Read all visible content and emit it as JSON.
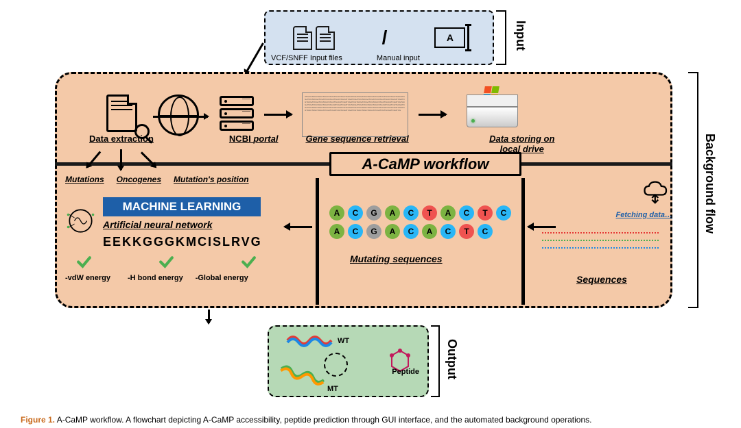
{
  "input": {
    "vcf_label": "VCF/SNFF Input files",
    "manual_label": "Manual input",
    "manual_char": "A",
    "section": "Input"
  },
  "bgflow": {
    "section": "Background flow",
    "data_extraction": "Data extraction",
    "ncbi": "NCBI portal",
    "gene_retrieval": "Gene sequence retrieval",
    "storing": "Data storing on local drive",
    "gene_text": "ATGCGTACGTAGCTAGCTACGTAGCTAGCTAGCATCGATCGATCGTACGATCGATCGTAGCTAGCTAGCATCGATCGTACGATCGATCGTAGCTAGCTAGCATCGATCGATCGTACGATCGATCGTAGCTAGCTAGCATCGATCGTACGATCGATCGTAGCTAGCTAGCATCGATCGATCGTACGATCGATCGTAGCTAGCTAGCATCGATCGTACGATCGATCGTAGCTAGCTAGCATCGATCGATCGTACGATCGATCGTAGCTAGCTAGCATCGATCGTACGATCGATCGTAGCTAGCTAGCATCGATCGATCGTACGATCGATCGTAGCTAGCTAGCATCGATCGTACGATCGATCGTAGCTAGCTAGCATCGATCGATCGTACGATCGATCGTAGCTAGCTAGCATCGATCGTACGATCGATCG",
    "windows_colors": [
      "#f25022",
      "#7fba00",
      "#00a4ef",
      "#ffb900"
    ]
  },
  "workflow": {
    "title": "A-CaMP workflow",
    "mutations": "Mutations",
    "oncogenes": "Oncogenes",
    "position": "Mutation's position",
    "ml": "MACHINE LEARNING",
    "ann": "Artificial neural network",
    "peptide_seq": "EEKKGGGKMCISLRVG",
    "energies": [
      "-vdW energy",
      "-H bond energy",
      "-Global energy"
    ],
    "check_color": "#4caf50",
    "fetching": "Fetching data…",
    "sequences_label": "Sequences",
    "mutating_label": "Mutating sequences",
    "seq_colors": [
      "#e53935",
      "#4caf50",
      "#1e88e5"
    ],
    "row1": [
      "A",
      "C",
      "G",
      "A",
      "C",
      "T",
      "A",
      "C",
      "T",
      "C"
    ],
    "row2": [
      "A",
      "C",
      "G",
      "A",
      "C",
      "A",
      "C",
      "T",
      "C"
    ],
    "base_colors": {
      "A": "#7cb342",
      "C": "#29b6f6",
      "G": "#9e9e9e",
      "T": "#ef5350"
    }
  },
  "output": {
    "section": "Output",
    "wt": "WT",
    "mt": "MT",
    "peptide": "Peptide"
  },
  "caption": {
    "label": "Figure 1.",
    "text": "A-CaMP workflow. A flowchart depicting A-CaMP accessibility, peptide prediction through GUI interface, and the automated background operations."
  }
}
